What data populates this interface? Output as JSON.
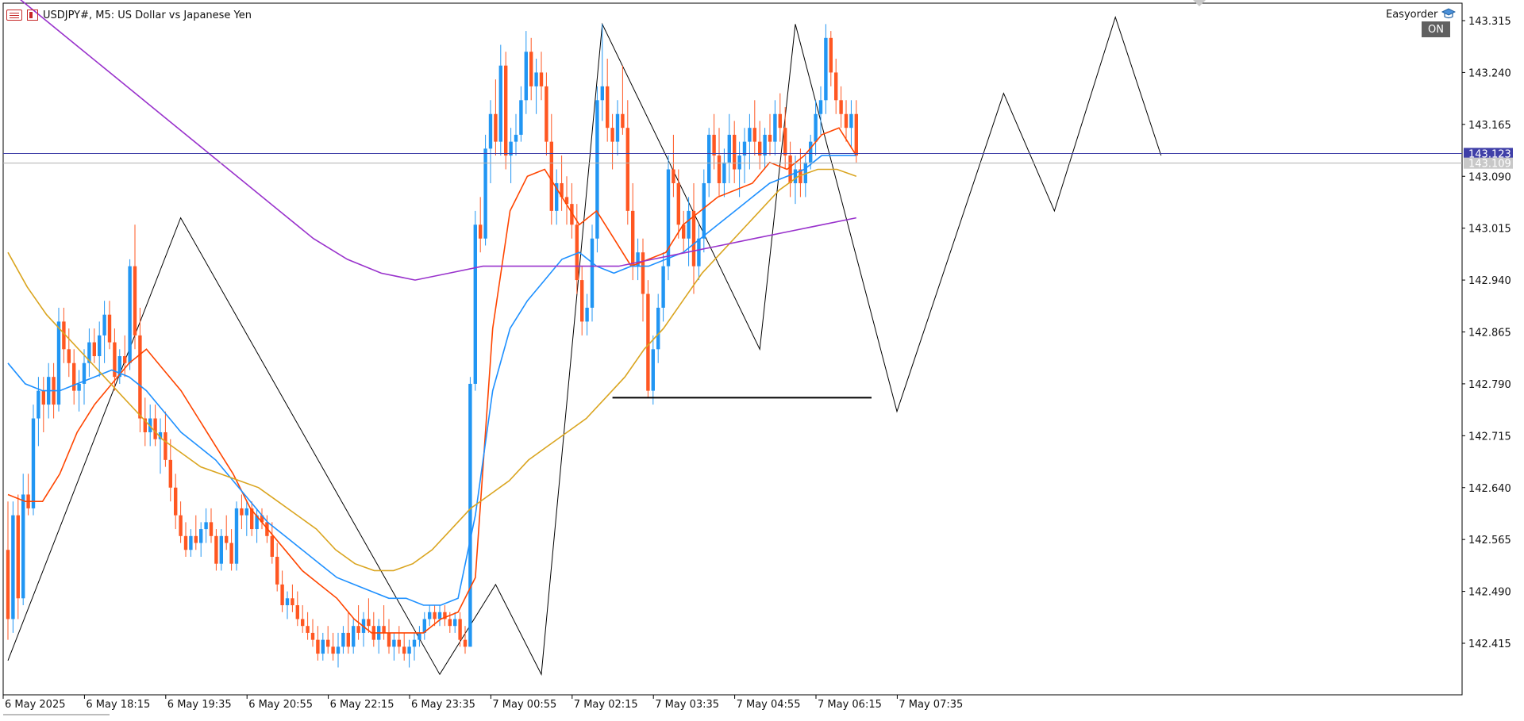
{
  "header": {
    "symbol_title": "USDJPY#, M5:  US Dollar vs Japanese Yen",
    "ea_name": "Easyorder",
    "ea_status": "ON",
    "menu_icon": "chart-menu-icon",
    "hat_icon": "graduation-cap-icon"
  },
  "colors": {
    "bull": "#2196f3",
    "bear": "#ff5722",
    "ma_fast": "#ff4500",
    "ma_mid": "#1e90ff",
    "ma_slow": "#daa520",
    "ma_long": "#9932cc",
    "bid_line": "#3f3fa8",
    "ask_line": "#b0b0b0"
  },
  "price_tags": {
    "bid": "143.123",
    "ask": "143.109"
  },
  "chart_data": {
    "type": "candlestick",
    "symbol": "USDJPY#",
    "timeframe": "M5",
    "y_ticks": [
      "143.315",
      "143.240",
      "143.165",
      "143.090",
      "143.015",
      "142.940",
      "142.865",
      "142.790",
      "142.715",
      "142.640",
      "142.565",
      "142.490",
      "142.415"
    ],
    "ylim": [
      142.34,
      143.34
    ],
    "x_ticks": [
      "6 May 2025",
      "6 May 18:15",
      "6 May 19:35",
      "6 May 20:55",
      "6 May 22:15",
      "6 May 23:35",
      "7 May 00:55",
      "7 May 02:15",
      "7 May 03:35",
      "7 May 04:55",
      "7 May 06:15",
      "7 May 07:35"
    ],
    "bars_per_tick": 16,
    "candles": [
      [
        142.55,
        142.62,
        142.42,
        142.45
      ],
      [
        142.45,
        142.62,
        142.43,
        142.6
      ],
      [
        142.6,
        142.63,
        142.45,
        142.48
      ],
      [
        142.48,
        142.66,
        142.47,
        142.63
      ],
      [
        142.63,
        142.66,
        142.6,
        142.61
      ],
      [
        142.61,
        142.76,
        142.6,
        142.74
      ],
      [
        142.74,
        142.8,
        142.7,
        142.78
      ],
      [
        142.78,
        142.8,
        142.72,
        142.76
      ],
      [
        142.76,
        142.82,
        142.74,
        142.8
      ],
      [
        142.8,
        142.82,
        142.74,
        142.76
      ],
      [
        142.76,
        142.9,
        142.75,
        142.88
      ],
      [
        142.88,
        142.9,
        142.82,
        142.84
      ],
      [
        142.84,
        142.87,
        142.8,
        142.82
      ],
      [
        142.82,
        142.84,
        142.76,
        142.78
      ],
      [
        142.78,
        142.81,
        142.75,
        142.79
      ],
      [
        142.79,
        142.84,
        142.76,
        142.82
      ],
      [
        142.82,
        142.87,
        142.8,
        142.85
      ],
      [
        142.85,
        142.87,
        142.82,
        142.83
      ],
      [
        142.83,
        142.88,
        142.8,
        142.86
      ],
      [
        142.86,
        142.91,
        142.82,
        142.89
      ],
      [
        142.89,
        142.91,
        142.84,
        142.85
      ],
      [
        142.85,
        142.87,
        142.78,
        142.8
      ],
      [
        142.8,
        142.84,
        142.79,
        142.83
      ],
      [
        142.83,
        142.86,
        142.8,
        142.82
      ],
      [
        142.82,
        142.97,
        142.81,
        142.96
      ],
      [
        142.96,
        143.02,
        142.84,
        142.86
      ],
      [
        142.86,
        142.9,
        142.72,
        142.74
      ],
      [
        142.74,
        142.77,
        142.7,
        142.72
      ],
      [
        142.72,
        142.76,
        142.7,
        142.74
      ],
      [
        142.74,
        142.76,
        142.7,
        142.71
      ],
      [
        142.71,
        142.74,
        142.66,
        142.72
      ],
      [
        142.72,
        142.75,
        142.67,
        142.68
      ],
      [
        142.68,
        142.71,
        142.62,
        142.64
      ],
      [
        142.64,
        142.66,
        142.58,
        142.6
      ],
      [
        142.6,
        142.62,
        142.56,
        142.57
      ],
      [
        142.57,
        142.59,
        142.54,
        142.55
      ],
      [
        142.55,
        142.58,
        142.54,
        142.57
      ],
      [
        142.57,
        142.6,
        142.55,
        142.56
      ],
      [
        142.56,
        142.59,
        142.54,
        142.58
      ],
      [
        142.58,
        142.61,
        142.56,
        142.59
      ],
      [
        142.59,
        142.61,
        142.56,
        142.57
      ],
      [
        142.57,
        142.58,
        142.52,
        142.53
      ],
      [
        142.53,
        142.58,
        142.52,
        142.57
      ],
      [
        142.57,
        142.6,
        142.55,
        142.56
      ],
      [
        142.56,
        142.58,
        142.52,
        142.53
      ],
      [
        142.53,
        142.62,
        142.52,
        142.61
      ],
      [
        142.61,
        142.63,
        142.58,
        142.6
      ],
      [
        142.6,
        142.62,
        142.57,
        142.61
      ],
      [
        142.61,
        142.62,
        142.57,
        142.58
      ],
      [
        142.58,
        142.61,
        142.56,
        142.6
      ],
      [
        142.6,
        142.61,
        142.58,
        142.59
      ],
      [
        142.59,
        142.6,
        142.56,
        142.57
      ],
      [
        142.57,
        142.59,
        142.53,
        142.54
      ],
      [
        142.54,
        142.56,
        142.49,
        142.5
      ],
      [
        142.5,
        142.52,
        142.46,
        142.47
      ],
      [
        142.47,
        142.49,
        142.45,
        142.48
      ],
      [
        142.48,
        142.5,
        142.46,
        142.47
      ],
      [
        142.47,
        142.49,
        142.44,
        142.45
      ],
      [
        142.45,
        142.47,
        142.43,
        142.44
      ],
      [
        142.44,
        142.46,
        142.42,
        142.43
      ],
      [
        142.43,
        142.45,
        142.41,
        142.42
      ],
      [
        142.42,
        142.44,
        142.39,
        142.4
      ],
      [
        142.4,
        142.43,
        142.39,
        142.42
      ],
      [
        142.42,
        142.44,
        142.4,
        142.41
      ],
      [
        142.41,
        142.43,
        142.39,
        142.4
      ],
      [
        142.4,
        142.43,
        142.38,
        142.41
      ],
      [
        142.41,
        142.44,
        142.4,
        142.43
      ],
      [
        142.43,
        142.46,
        142.4,
        142.41
      ],
      [
        142.41,
        142.45,
        142.4,
        142.44
      ],
      [
        142.44,
        142.47,
        142.42,
        142.43
      ],
      [
        142.43,
        142.46,
        142.41,
        142.45
      ],
      [
        142.45,
        142.48,
        142.43,
        142.44
      ],
      [
        142.44,
        142.46,
        142.41,
        142.42
      ],
      [
        142.42,
        142.45,
        142.4,
        142.44
      ],
      [
        142.44,
        142.47,
        142.42,
        142.43
      ],
      [
        142.43,
        142.45,
        142.4,
        142.41
      ],
      [
        142.41,
        142.43,
        142.39,
        142.42
      ],
      [
        142.42,
        142.44,
        142.4,
        142.41
      ],
      [
        142.41,
        142.43,
        142.39,
        142.4
      ],
      [
        142.4,
        142.42,
        142.38,
        142.41
      ],
      [
        142.41,
        142.43,
        142.39,
        142.42
      ],
      [
        142.42,
        142.44,
        142.41,
        142.43
      ],
      [
        142.43,
        142.46,
        142.42,
        142.45
      ],
      [
        142.45,
        142.47,
        142.44,
        142.46
      ],
      [
        142.46,
        142.47,
        142.44,
        142.45
      ],
      [
        142.45,
        142.47,
        142.44,
        142.46
      ],
      [
        142.46,
        142.47,
        142.44,
        142.45
      ],
      [
        142.45,
        142.46,
        142.43,
        142.44
      ],
      [
        142.44,
        142.46,
        142.43,
        142.45
      ],
      [
        142.45,
        142.46,
        142.41,
        142.42
      ],
      [
        142.42,
        142.44,
        142.4,
        142.41
      ],
      [
        142.41,
        142.8,
        142.41,
        142.79
      ],
      [
        142.79,
        143.04,
        142.78,
        143.02
      ],
      [
        143.02,
        143.06,
        142.98,
        143.0
      ],
      [
        143.0,
        143.15,
        142.99,
        143.13
      ],
      [
        143.13,
        143.2,
        143.08,
        143.18
      ],
      [
        143.18,
        143.23,
        143.12,
        143.14
      ],
      [
        143.14,
        143.28,
        143.12,
        143.25
      ],
      [
        143.25,
        143.27,
        143.1,
        143.12
      ],
      [
        143.12,
        143.16,
        143.08,
        143.14
      ],
      [
        143.14,
        143.18,
        143.12,
        143.15
      ],
      [
        143.15,
        143.22,
        143.14,
        143.2
      ],
      [
        143.2,
        143.3,
        143.18,
        143.27
      ],
      [
        143.27,
        143.29,
        143.2,
        143.22
      ],
      [
        143.22,
        143.26,
        143.18,
        143.24
      ],
      [
        143.24,
        143.27,
        143.2,
        143.22
      ],
      [
        143.22,
        143.24,
        143.12,
        143.14
      ],
      [
        143.14,
        143.18,
        143.02,
        143.04
      ],
      [
        143.04,
        143.1,
        143.02,
        143.08
      ],
      [
        143.08,
        143.12,
        143.04,
        143.06
      ],
      [
        143.06,
        143.09,
        143.02,
        143.05
      ],
      [
        143.05,
        143.08,
        143.0,
        143.02
      ],
      [
        143.02,
        143.05,
        142.92,
        142.94
      ],
      [
        142.94,
        142.96,
        142.86,
        142.88
      ],
      [
        142.88,
        142.92,
        142.86,
        142.9
      ],
      [
        142.9,
        143.02,
        142.88,
        143.0
      ],
      [
        143.0,
        143.22,
        142.98,
        143.2
      ],
      [
        143.2,
        143.31,
        143.17,
        143.22
      ],
      [
        143.22,
        143.26,
        143.14,
        143.16
      ],
      [
        143.16,
        143.18,
        143.1,
        143.14
      ],
      [
        143.14,
        143.2,
        143.12,
        143.18
      ],
      [
        143.18,
        143.25,
        143.15,
        143.16
      ],
      [
        143.16,
        143.2,
        143.02,
        143.04
      ],
      [
        143.04,
        143.08,
        142.94,
        142.96
      ],
      [
        142.96,
        143.0,
        142.94,
        142.98
      ],
      [
        142.98,
        143.0,
        142.88,
        142.92
      ],
      [
        142.92,
        142.94,
        142.77,
        142.78
      ],
      [
        142.78,
        142.86,
        142.76,
        142.84
      ],
      [
        142.84,
        142.92,
        142.82,
        142.9
      ],
      [
        142.9,
        142.98,
        142.88,
        142.96
      ],
      [
        142.96,
        143.12,
        142.94,
        143.1
      ],
      [
        143.1,
        143.15,
        143.06,
        143.08
      ],
      [
        143.08,
        143.1,
        143.0,
        143.02
      ],
      [
        143.02,
        143.04,
        142.98,
        143.0
      ],
      [
        143.0,
        143.06,
        142.96,
        143.04
      ],
      [
        143.04,
        143.08,
        142.92,
        142.96
      ],
      [
        142.96,
        143.02,
        142.94,
        143.0
      ],
      [
        143.0,
        143.1,
        142.98,
        143.08
      ],
      [
        143.08,
        143.16,
        143.06,
        143.15
      ],
      [
        143.15,
        143.18,
        143.1,
        143.12
      ],
      [
        143.12,
        143.16,
        143.06,
        143.08
      ],
      [
        143.08,
        143.13,
        143.06,
        143.11
      ],
      [
        143.11,
        143.18,
        143.08,
        143.15
      ],
      [
        143.15,
        143.17,
        143.08,
        143.1
      ],
      [
        143.1,
        143.14,
        143.06,
        143.12
      ],
      [
        143.12,
        143.16,
        143.08,
        143.14
      ],
      [
        143.14,
        143.18,
        143.1,
        143.16
      ],
      [
        143.16,
        143.2,
        143.12,
        143.14
      ],
      [
        143.14,
        143.17,
        143.1,
        143.12
      ],
      [
        143.12,
        143.16,
        143.1,
        143.15
      ],
      [
        143.15,
        143.18,
        143.12,
        143.14
      ],
      [
        143.14,
        143.2,
        143.12,
        143.18
      ],
      [
        143.18,
        143.21,
        143.14,
        143.16
      ],
      [
        143.16,
        143.19,
        143.1,
        143.12
      ],
      [
        143.12,
        143.14,
        143.06,
        143.08
      ],
      [
        143.08,
        143.12,
        143.05,
        143.1
      ],
      [
        143.1,
        143.13,
        143.06,
        143.08
      ],
      [
        143.08,
        143.12,
        143.06,
        143.11
      ],
      [
        143.11,
        143.15,
        143.1,
        143.14
      ],
      [
        143.14,
        143.2,
        143.12,
        143.18
      ],
      [
        143.18,
        143.22,
        143.15,
        143.2
      ],
      [
        143.2,
        143.31,
        143.18,
        143.29
      ],
      [
        143.29,
        143.3,
        143.22,
        143.24
      ],
      [
        143.24,
        143.26,
        143.18,
        143.2
      ],
      [
        143.2,
        143.22,
        143.16,
        143.18
      ],
      [
        143.18,
        143.2,
        143.14,
        143.16
      ],
      [
        143.16,
        143.2,
        143.13,
        143.18
      ],
      [
        143.18,
        143.2,
        143.11,
        143.12
      ]
    ],
    "moving_averages": [
      {
        "color": "ma_fast",
        "values": [
          142.63,
          142.62,
          142.62,
          142.66,
          142.72,
          142.76,
          142.79,
          142.82,
          142.84,
          142.81,
          142.78,
          142.74,
          142.7,
          142.66,
          142.61,
          142.58,
          142.55,
          142.52,
          142.5,
          142.48,
          142.45,
          142.43,
          142.43,
          142.43,
          142.43,
          142.45,
          142.46,
          142.51,
          142.87,
          143.04,
          143.09,
          143.1,
          143.06,
          143.02,
          143.04,
          143.0,
          142.96,
          142.97,
          142.98,
          143.02,
          143.04,
          143.06,
          143.07,
          143.08,
          143.11,
          143.1,
          143.12,
          143.15,
          143.16,
          143.12
        ]
      },
      {
        "color": "ma_mid",
        "values": [
          142.82,
          142.79,
          142.78,
          142.78,
          142.79,
          142.8,
          142.81,
          142.8,
          142.78,
          142.75,
          142.72,
          142.7,
          142.68,
          142.65,
          142.62,
          142.59,
          142.57,
          142.55,
          142.53,
          142.51,
          142.5,
          142.49,
          142.48,
          142.48,
          142.47,
          142.47,
          142.48,
          142.6,
          142.78,
          142.87,
          142.91,
          142.94,
          142.97,
          142.98,
          142.96,
          142.95,
          142.96,
          142.96,
          142.97,
          142.98,
          143.0,
          143.02,
          143.04,
          143.06,
          143.08,
          143.09,
          143.1,
          143.12,
          143.12,
          143.12
        ]
      },
      {
        "color": "ma_slow",
        "values": [
          142.98,
          142.93,
          142.89,
          142.86,
          142.83,
          142.8,
          142.77,
          142.74,
          142.71,
          142.69,
          142.67,
          142.66,
          142.65,
          142.64,
          142.62,
          142.6,
          142.58,
          142.55,
          142.53,
          142.52,
          142.52,
          142.53,
          142.55,
          142.58,
          142.61,
          142.63,
          142.65,
          142.68,
          142.7,
          142.72,
          142.74,
          142.77,
          142.8,
          142.84,
          142.87,
          142.91,
          142.95,
          142.98,
          143.01,
          143.04,
          143.07,
          143.09,
          143.1,
          143.1,
          143.09
        ]
      },
      {
        "color": "ma_long",
        "values": [
          143.36,
          143.32,
          143.28,
          143.24,
          143.2,
          143.16,
          143.12,
          143.08,
          143.04,
          143.0,
          142.97,
          142.95,
          142.94,
          142.95,
          142.96,
          142.96,
          142.96,
          142.96,
          142.96,
          142.97,
          142.98,
          142.99,
          143.0,
          143.01,
          143.02,
          143.03
        ]
      }
    ],
    "zigzag": [
      [
        0,
        142.39
      ],
      [
        34,
        143.03
      ],
      [
        85,
        142.37
      ],
      [
        96,
        142.5
      ],
      [
        105,
        142.37
      ],
      [
        117,
        143.31
      ],
      [
        148,
        142.84
      ],
      [
        155,
        143.31
      ],
      [
        175,
        142.75
      ],
      [
        196,
        143.21
      ],
      [
        206,
        143.04
      ],
      [
        218,
        143.32
      ],
      [
        227,
        143.12
      ]
    ],
    "support_line": {
      "price": 142.77,
      "from_bar": 119,
      "to_bar": 170
    }
  }
}
